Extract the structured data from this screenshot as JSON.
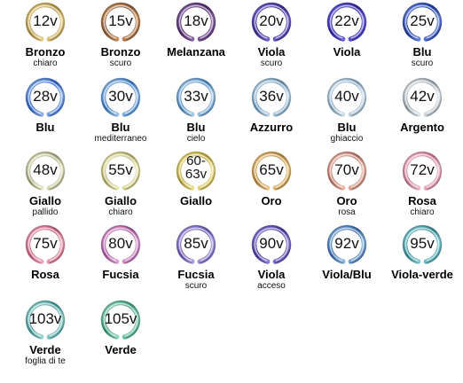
{
  "swatches": [
    {
      "voltage": "12v",
      "name": "Bronzo",
      "sub": "chiaro",
      "colors": [
        "#b0954a",
        "#e7cf85"
      ]
    },
    {
      "voltage": "15v",
      "name": "Bronzo",
      "sub": "scuro",
      "colors": [
        "#8b5a3a",
        "#c8935f"
      ]
    },
    {
      "voltage": "18v",
      "name": "Melanzana",
      "sub": "",
      "colors": [
        "#4e2b6a",
        "#8c68a8"
      ]
    },
    {
      "voltage": "20v",
      "name": "Viola",
      "sub": "scuro",
      "colors": [
        "#3b2b8f",
        "#7a6ad0"
      ]
    },
    {
      "voltage": "22v",
      "name": "Viola",
      "sub": "",
      "colors": [
        "#3024a0",
        "#6f63e0"
      ]
    },
    {
      "voltage": "25v",
      "name": "Blu",
      "sub": "scuro",
      "colors": [
        "#1e3aa0",
        "#6a86e0"
      ]
    },
    {
      "voltage": "28v",
      "name": "Blu",
      "sub": "",
      "colors": [
        "#2d63c8",
        "#8fb2f0"
      ]
    },
    {
      "voltage": "30v",
      "name": "Blu",
      "sub": "mediterraneo",
      "colors": [
        "#3a78c8",
        "#9cc4ee"
      ]
    },
    {
      "voltage": "33v",
      "name": "Blu",
      "sub": "cielo",
      "colors": [
        "#4f88c0",
        "#a8cbe8"
      ]
    },
    {
      "voltage": "36v",
      "name": "Azzurro",
      "sub": "",
      "colors": [
        "#6f98b8",
        "#c2d8ea"
      ]
    },
    {
      "voltage": "40v",
      "name": "Blu",
      "sub": "ghiaccio",
      "colors": [
        "#88a8c0",
        "#d2e2ee"
      ]
    },
    {
      "voltage": "42v",
      "name": "Argento",
      "sub": "",
      "colors": [
        "#9aa6ae",
        "#e2e8ec"
      ]
    },
    {
      "voltage": "48v",
      "name": "Giallo",
      "sub": "pallido",
      "colors": [
        "#a8a880",
        "#e6e6c6"
      ]
    },
    {
      "voltage": "55v",
      "name": "Giallo",
      "sub": "chiaro",
      "colors": [
        "#b6b270",
        "#ecebb4"
      ]
    },
    {
      "voltage": "60-63v",
      "name": "Giallo",
      "sub": "",
      "colors": [
        "#b8a840",
        "#efe28c"
      ]
    },
    {
      "voltage": "65v",
      "name": "Oro",
      "sub": "",
      "colors": [
        "#b88a40",
        "#ecc889"
      ]
    },
    {
      "voltage": "70v",
      "name": "Oro",
      "sub": "rosa",
      "colors": [
        "#b8786a",
        "#eeb8a8"
      ]
    },
    {
      "voltage": "72v",
      "name": "Rosa",
      "sub": "chiaro",
      "colors": [
        "#c87894",
        "#f2bcd0"
      ]
    },
    {
      "voltage": "75v",
      "name": "Rosa",
      "sub": "",
      "colors": [
        "#c8607e",
        "#f0a6bc"
      ]
    },
    {
      "voltage": "80v",
      "name": "Fucsia",
      "sub": "",
      "colors": [
        "#a85a9c",
        "#e0a2d6"
      ]
    },
    {
      "voltage": "85v",
      "name": "Fucsia",
      "sub": "scuro",
      "colors": [
        "#6a58b0",
        "#aa9ae4"
      ]
    },
    {
      "voltage": "90v",
      "name": "Viola",
      "sub": "acceso",
      "colors": [
        "#4a3a9a",
        "#8e7ed8"
      ]
    },
    {
      "voltage": "92v",
      "name": "Viola/Blu",
      "sub": "",
      "colors": [
        "#3a6aa8",
        "#88b4e0"
      ]
    },
    {
      "voltage": "95v",
      "name": "Viola-verde",
      "sub": "",
      "colors": [
        "#3a8e98",
        "#88cfd4"
      ]
    },
    {
      "voltage": "103v",
      "name": "Verde",
      "sub": "foglia di te",
      "colors": [
        "#4a9a9a",
        "#98d6d2"
      ]
    },
    {
      "voltage": "105v",
      "name": "Verde",
      "sub": "",
      "colors": [
        "#3e9a7e",
        "#8ed6bc"
      ]
    }
  ]
}
